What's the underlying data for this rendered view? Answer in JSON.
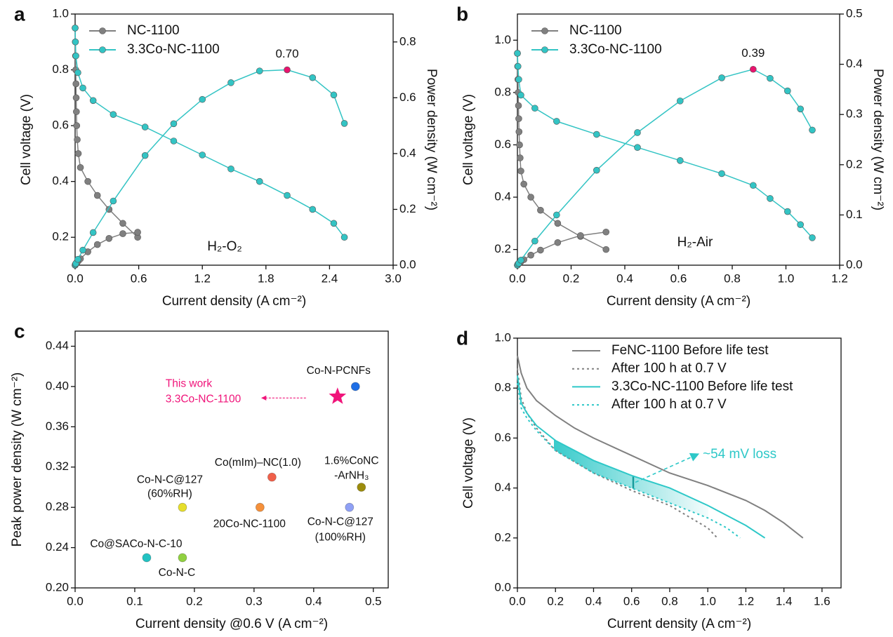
{
  "chart_data": [
    {
      "type": "line",
      "panel_label": "a",
      "xlabel": "Current density (A cm⁻²)",
      "ylabel": "Cell voltage (V)",
      "y2label": "Power density (W cm⁻²)",
      "condition": "H₂-O₂",
      "legend": "upper left",
      "xlim": [
        0,
        3.0
      ],
      "xticks": [
        {
          "value": 0,
          "label": "0.0"
        },
        0.6,
        1.2,
        1.8,
        2.4,
        {
          "value": 3,
          "label": "3.0"
        }
      ],
      "ylim": [
        0.1,
        1.0
      ],
      "yticks": [
        0.2,
        0.4,
        0.6,
        0.8,
        {
          "value": 1,
          "label": "1.0"
        }
      ],
      "y2lim": [
        0,
        0.9
      ],
      "y2ticks": [
        {
          "value": 0,
          "label": "0.0"
        },
        0.2,
        0.4,
        0.6,
        0.8
      ],
      "series": [
        {
          "name": "NC-1100",
          "color": "#808080",
          "marker": "circle",
          "x": [
            0,
            0.002,
            0.004,
            0.006,
            0.008,
            0.01,
            0.012,
            0.015,
            0.02,
            0.03,
            0.05,
            0.12,
            0.21,
            0.32,
            0.45,
            0.59
          ],
          "values": [
            0.95,
            0.9,
            0.85,
            0.8,
            0.75,
            0.7,
            0.65,
            0.6,
            0.55,
            0.5,
            0.45,
            0.4,
            0.35,
            0.3,
            0.25,
            0.2
          ]
        },
        {
          "name": "3.3Co-NC-1100",
          "color": "#33c4c4",
          "marker": "circle",
          "x": [
            0,
            0.003,
            0.007,
            0.026,
            0.073,
            0.17,
            0.36,
            0.66,
            0.93,
            1.2,
            1.47,
            1.74,
            2.0,
            2.24,
            2.44,
            2.54
          ],
          "values": [
            0.95,
            0.9,
            0.85,
            0.79,
            0.735,
            0.69,
            0.64,
            0.595,
            0.545,
            0.495,
            0.445,
            0.4,
            0.35,
            0.3,
            0.25,
            0.2
          ]
        },
        {
          "color": "#808080",
          "marker": "circle",
          "axis": "y2",
          "x": [
            0,
            0.002,
            0.004,
            0.006,
            0.008,
            0.01,
            0.012,
            0.015,
            0.02,
            0.03,
            0.05,
            0.12,
            0.21,
            0.32,
            0.45,
            0.59
          ],
          "values": [
            0,
            0.002,
            0.003,
            0.005,
            0.006,
            0.007,
            0.008,
            0.009,
            0.011,
            0.015,
            0.023,
            0.048,
            0.074,
            0.096,
            0.113,
            0.118
          ]
        },
        {
          "color": "#33c4c4",
          "marker": "circle",
          "axis": "y2",
          "peak_label": "0.70",
          "peak_color": "#e8146e",
          "x": [
            0,
            0.003,
            0.007,
            0.026,
            0.073,
            0.17,
            0.36,
            0.66,
            0.93,
            1.2,
            1.47,
            1.74,
            2.0,
            2.24,
            2.44,
            2.54
          ],
          "values": [
            0,
            0.003,
            0.006,
            0.021,
            0.054,
            0.117,
            0.23,
            0.393,
            0.507,
            0.594,
            0.654,
            0.696,
            0.7,
            0.672,
            0.61,
            0.508
          ]
        }
      ]
    },
    {
      "type": "line",
      "panel_label": "b",
      "xlabel": "Current density (A cm⁻²)",
      "ylabel": "Cell voltage (V)",
      "y2label": "Power density (W cm⁻²)",
      "condition": "H₂-Air",
      "legend": "upper left",
      "xlim": [
        0,
        1.2
      ],
      "xticks": [
        {
          "value": 0,
          "label": "0.0"
        },
        0.2,
        0.4,
        0.6,
        0.8,
        {
          "value": 1,
          "label": "1.0"
        },
        1.2
      ],
      "ylim": [
        0.14,
        1.1
      ],
      "yticks": [
        0.2,
        0.4,
        0.6,
        0.8,
        {
          "value": 1,
          "label": "1.0"
        }
      ],
      "y2lim": [
        0,
        0.5
      ],
      "y2ticks": [
        {
          "value": 0,
          "label": "0.0"
        },
        0.1,
        0.2,
        0.3,
        0.4,
        0.5
      ],
      "series": [
        {
          "name": "NC-1100",
          "color": "#808080",
          "marker": "circle",
          "x": [
            0,
            0.001,
            0.002,
            0.003,
            0.004,
            0.005,
            0.006,
            0.008,
            0.01,
            0.013,
            0.024,
            0.05,
            0.086,
            0.15,
            0.235,
            0.33
          ],
          "values": [
            0.95,
            0.9,
            0.85,
            0.8,
            0.75,
            0.7,
            0.65,
            0.6,
            0.55,
            0.5,
            0.45,
            0.4,
            0.35,
            0.3,
            0.25,
            0.2
          ]
        },
        {
          "name": "3.3Co-NC-1100",
          "color": "#33c4c4",
          "marker": "circle",
          "x": [
            0,
            0.002,
            0.005,
            0.013,
            0.065,
            0.146,
            0.295,
            0.447,
            0.606,
            0.761,
            0.878,
            0.941,
            1.006,
            1.054,
            1.098
          ],
          "values": [
            0.95,
            0.9,
            0.85,
            0.79,
            0.74,
            0.69,
            0.64,
            0.59,
            0.54,
            0.49,
            0.445,
            0.395,
            0.345,
            0.295,
            0.245
          ]
        },
        {
          "color": "#808080",
          "marker": "circle",
          "axis": "y2",
          "x": [
            0,
            0.001,
            0.002,
            0.003,
            0.004,
            0.005,
            0.006,
            0.008,
            0.01,
            0.013,
            0.024,
            0.05,
            0.086,
            0.15,
            0.235,
            0.33
          ],
          "values": [
            0,
            0.001,
            0.002,
            0.002,
            0.003,
            0.004,
            0.004,
            0.005,
            0.006,
            0.007,
            0.011,
            0.02,
            0.03,
            0.045,
            0.059,
            0.066
          ]
        },
        {
          "color": "#33c4c4",
          "marker": "circle",
          "axis": "y2",
          "peak_label": "0.39",
          "peak_color": "#e8146e",
          "x": [
            0,
            0.002,
            0.005,
            0.013,
            0.065,
            0.146,
            0.295,
            0.447,
            0.606,
            0.761,
            0.878,
            0.941,
            1.006,
            1.054,
            1.098
          ],
          "values": [
            0,
            0.002,
            0.004,
            0.01,
            0.048,
            0.1,
            0.189,
            0.264,
            0.327,
            0.373,
            0.39,
            0.372,
            0.347,
            0.311,
            0.269
          ]
        }
      ]
    },
    {
      "type": "scatter",
      "panel_label": "c",
      "xlabel": "Current density @0.6 V (A cm⁻²)",
      "ylabel": "Peak power density (W cm⁻²)",
      "xlim": [
        0,
        0.525
      ],
      "xticks": [
        {
          "value": 0,
          "label": "0.0"
        },
        0.1,
        0.2,
        0.3,
        0.4,
        0.5
      ],
      "ylim": [
        0.2,
        0.455
      ],
      "yticks": [
        {
          "value": 0.2,
          "label": "0.20"
        },
        0.24,
        0.28,
        0.32,
        0.36,
        {
          "value": 0.4,
          "label": "0.40"
        },
        0.44
      ],
      "series": [
        {
          "name": [
            "Co-N-PCNFs"
          ],
          "color": "#1f6fe6",
          "marker": "circle",
          "x": [
            0.47
          ],
          "values": [
            0.4
          ]
        },
        {
          "name": [
            "This work",
            "3.3Co-NC-1100"
          ],
          "color": "#f0147a",
          "label_color": "#f0147a",
          "marker": "star",
          "x": [
            0.44
          ],
          "values": [
            0.39
          ]
        },
        {
          "name": [
            "Co(mIm)–NC(1.0)"
          ],
          "color": "#f0604a",
          "marker": "circle",
          "x": [
            0.33
          ],
          "values": [
            0.31
          ]
        },
        {
          "name": [
            "1.6%CoNC",
            "-ArNH₃"
          ],
          "color": "#9c8c0c",
          "marker": "circle",
          "x": [
            0.48
          ],
          "values": [
            0.3
          ]
        },
        {
          "name": [
            "Co-N-C@127",
            "(60%RH)"
          ],
          "color": "#e6de2c",
          "marker": "circle",
          "x": [
            0.18
          ],
          "values": [
            0.28
          ]
        },
        {
          "name": [
            "20Co-NC-1100"
          ],
          "color": "#f5903a",
          "marker": "circle",
          "x": [
            0.31
          ],
          "values": [
            0.28
          ]
        },
        {
          "name": [
            "Co-N-C@127",
            "(100%RH)"
          ],
          "color": "#8fa0f5",
          "marker": "circle",
          "x": [
            0.46
          ],
          "values": [
            0.28
          ]
        },
        {
          "name": [
            "Co@SACo-N-C-10"
          ],
          "color": "#22c2c2",
          "marker": "circle",
          "x": [
            0.12
          ],
          "values": [
            0.23
          ]
        },
        {
          "name": [
            "Co-N-C"
          ],
          "color": "#90d040",
          "marker": "circle",
          "x": [
            0.18
          ],
          "values": [
            0.23
          ]
        }
      ]
    },
    {
      "type": "line",
      "panel_label": "d",
      "xlabel": "Current density (A cm⁻²)",
      "ylabel": "Cell voltage (V)",
      "annotation": "~54 mV loss",
      "legend": "upper right",
      "xlim": [
        0,
        1.7
      ],
      "xticks": [
        {
          "value": 0,
          "label": "0.0"
        },
        0.2,
        0.4,
        0.6,
        0.8,
        {
          "value": 1,
          "label": "1.0"
        },
        1.2,
        1.4,
        1.6
      ],
      "ylim": [
        0,
        1.0
      ],
      "yticks": [
        {
          "value": 0,
          "label": "0.0"
        },
        0.2,
        0.4,
        0.6,
        0.8,
        {
          "value": 1,
          "label": "1.0"
        }
      ],
      "series": [
        {
          "name": "FeNC-1100 Before life test",
          "color": "#808080",
          "dash": "solid",
          "x": [
            0,
            0.02,
            0.05,
            0.1,
            0.2,
            0.3,
            0.4,
            0.6,
            0.8,
            1.0,
            1.2,
            1.3,
            1.4,
            1.5
          ],
          "values": [
            0.93,
            0.86,
            0.8,
            0.75,
            0.69,
            0.64,
            0.6,
            0.53,
            0.46,
            0.41,
            0.35,
            0.31,
            0.26,
            0.2
          ]
        },
        {
          "name": "After 100 h at 0.7 V",
          "color": "#808080",
          "dash": "dotted",
          "x": [
            0,
            0.02,
            0.05,
            0.1,
            0.2,
            0.4,
            0.6,
            0.8,
            1.0,
            1.05
          ],
          "values": [
            0.88,
            0.76,
            0.7,
            0.64,
            0.55,
            0.46,
            0.39,
            0.33,
            0.24,
            0.2
          ]
        },
        {
          "name": "3.3Co-NC-1100 Before life test",
          "color": "#2ec8c8",
          "dash": "solid",
          "x": [
            0,
            0.02,
            0.05,
            0.1,
            0.2,
            0.4,
            0.6,
            0.8,
            1.0,
            1.1,
            1.2,
            1.3
          ],
          "values": [
            0.85,
            0.74,
            0.7,
            0.65,
            0.59,
            0.51,
            0.45,
            0.4,
            0.33,
            0.29,
            0.25,
            0.2
          ]
        },
        {
          "name": "After 100 h at 0.7 V",
          "color": "#2ec8c8",
          "dash": "dotted",
          "x": [
            0,
            0.02,
            0.05,
            0.1,
            0.2,
            0.4,
            0.6,
            0.8,
            1.0,
            1.1,
            1.17
          ],
          "values": [
            0.82,
            0.72,
            0.68,
            0.63,
            0.55,
            0.46,
            0.4,
            0.34,
            0.28,
            0.24,
            0.2
          ]
        }
      ]
    }
  ]
}
